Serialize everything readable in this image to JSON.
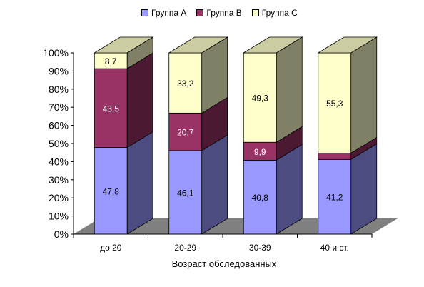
{
  "chart_data": {
    "type": "bar",
    "stacked": "percent",
    "categories": [
      "до 20",
      "20-29",
      "30-39",
      "40 и ст."
    ],
    "series": [
      {
        "name": "Группа А",
        "values": [
          47.8,
          46.1,
          40.8,
          41.2
        ],
        "color": "#9999FF",
        "side_color": "#4C4C80",
        "top_color": "#7A7ACC",
        "labels": [
          "47,8",
          "46,1",
          "40,8",
          "41,2"
        ]
      },
      {
        "name": "Группа В",
        "values": [
          43.5,
          20.7,
          9.9,
          3.5
        ],
        "color": "#993366",
        "side_color": "#4C1933",
        "top_color": "#7A2952",
        "labels": [
          "43,5",
          "20,7",
          "9,9",
          ""
        ]
      },
      {
        "name": "Группа С",
        "values": [
          8.7,
          33.2,
          49.3,
          55.3
        ],
        "color": "#FFFFCC",
        "side_color": "#808066",
        "top_color": "#CCCCA3",
        "labels": [
          "8,7",
          "33,2",
          "49,3",
          "55,3"
        ]
      }
    ],
    "xlabel": "Возраст обследованных",
    "ylabel": "",
    "ylim": [
      0,
      100
    ],
    "yticks": [
      "0%",
      "10%",
      "20%",
      "30%",
      "40%",
      "50%",
      "60%",
      "70%",
      "80%",
      "90%",
      "100%"
    ],
    "legend": "top",
    "grid": false,
    "floor_color": "#808080"
  }
}
